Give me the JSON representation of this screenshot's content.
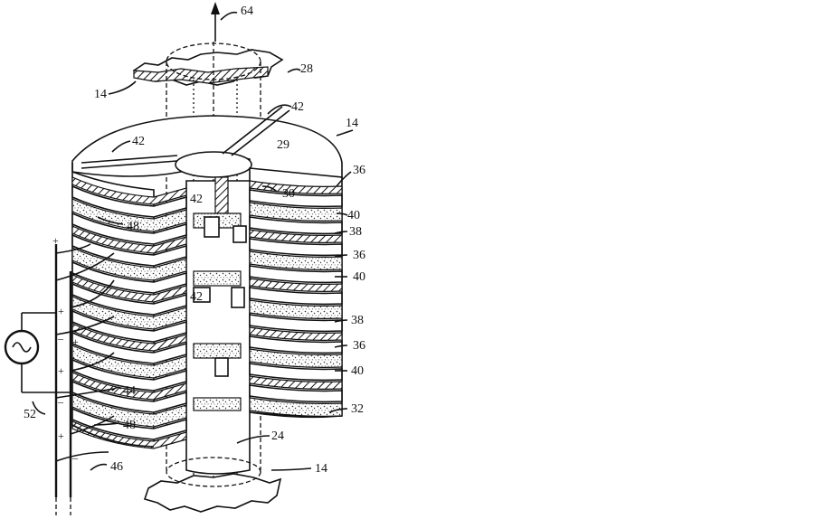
{
  "labels": {
    "l64": "64",
    "l28": "28",
    "l14a": "14",
    "l42a": "42",
    "l14b": "14",
    "l42b": "42",
    "l29": "29",
    "l36a": "36",
    "l30": "30",
    "l42c": "42",
    "l40a": "40",
    "l48a": "48",
    "l38a": "38",
    "l36b": "36",
    "l40b": "40",
    "l42d": "42",
    "l38b": "38",
    "l36c": "36",
    "l40c": "40",
    "l44": "44",
    "l52": "52",
    "l48b": "48",
    "l32": "32",
    "l24": "24",
    "l14c": "14",
    "l46": "46"
  },
  "signs": [
    "+",
    "+",
    "–",
    "+",
    "–",
    "+",
    "–",
    "+"
  ]
}
